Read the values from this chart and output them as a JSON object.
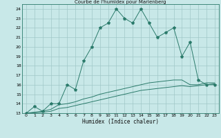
{
  "title": "Courbe de l'humidex pour Marienberg",
  "xlabel": "Humidex (Indice chaleur)",
  "bg_color": "#c8e8e8",
  "grid_color": "#a0c8c8",
  "line_color": "#2a7a6a",
  "xlim": [
    -0.5,
    23.5
  ],
  "ylim": [
    13,
    24.5
  ],
  "xticks": [
    0,
    1,
    2,
    3,
    4,
    5,
    6,
    7,
    8,
    9,
    10,
    11,
    12,
    13,
    14,
    15,
    16,
    17,
    18,
    19,
    20,
    21,
    22,
    23
  ],
  "yticks": [
    13,
    14,
    15,
    16,
    17,
    18,
    19,
    20,
    21,
    22,
    23,
    24
  ],
  "line1_x": [
    0,
    1,
    2,
    3,
    4,
    5,
    6,
    7,
    8,
    9,
    10,
    11,
    12,
    13,
    14,
    15,
    16,
    17,
    18,
    19,
    20,
    21,
    22,
    23
  ],
  "line1_y": [
    13,
    13.7,
    13.2,
    14.0,
    14.0,
    16.0,
    15.5,
    18.5,
    20.0,
    22.0,
    22.5,
    24.0,
    23.0,
    22.5,
    24.0,
    22.5,
    21.0,
    21.5,
    22.0,
    19.0,
    20.5,
    16.5,
    16.0,
    16.0
  ],
  "line2_x": [
    0,
    1,
    2,
    3,
    4,
    5,
    6,
    7,
    8,
    9,
    10,
    11,
    12,
    13,
    14,
    15,
    16,
    17,
    18,
    19,
    20,
    21,
    22,
    23
  ],
  "line2_y": [
    13,
    13.1,
    13.2,
    13.4,
    13.9,
    14.0,
    14.2,
    14.5,
    14.7,
    15.0,
    15.2,
    15.4,
    15.6,
    15.8,
    16.0,
    16.2,
    16.3,
    16.4,
    16.5,
    16.5,
    16.0,
    16.0,
    16.2,
    16.2
  ],
  "line3_x": [
    0,
    1,
    2,
    3,
    4,
    5,
    6,
    7,
    8,
    9,
    10,
    11,
    12,
    13,
    14,
    15,
    16,
    17,
    18,
    19,
    20,
    21,
    22,
    23
  ],
  "line3_y": [
    13,
    13.05,
    13.1,
    13.2,
    13.5,
    13.6,
    13.8,
    14.0,
    14.2,
    14.4,
    14.6,
    14.8,
    15.0,
    15.2,
    15.4,
    15.5,
    15.6,
    15.7,
    15.8,
    15.9,
    15.8,
    15.9,
    16.0,
    16.1
  ]
}
